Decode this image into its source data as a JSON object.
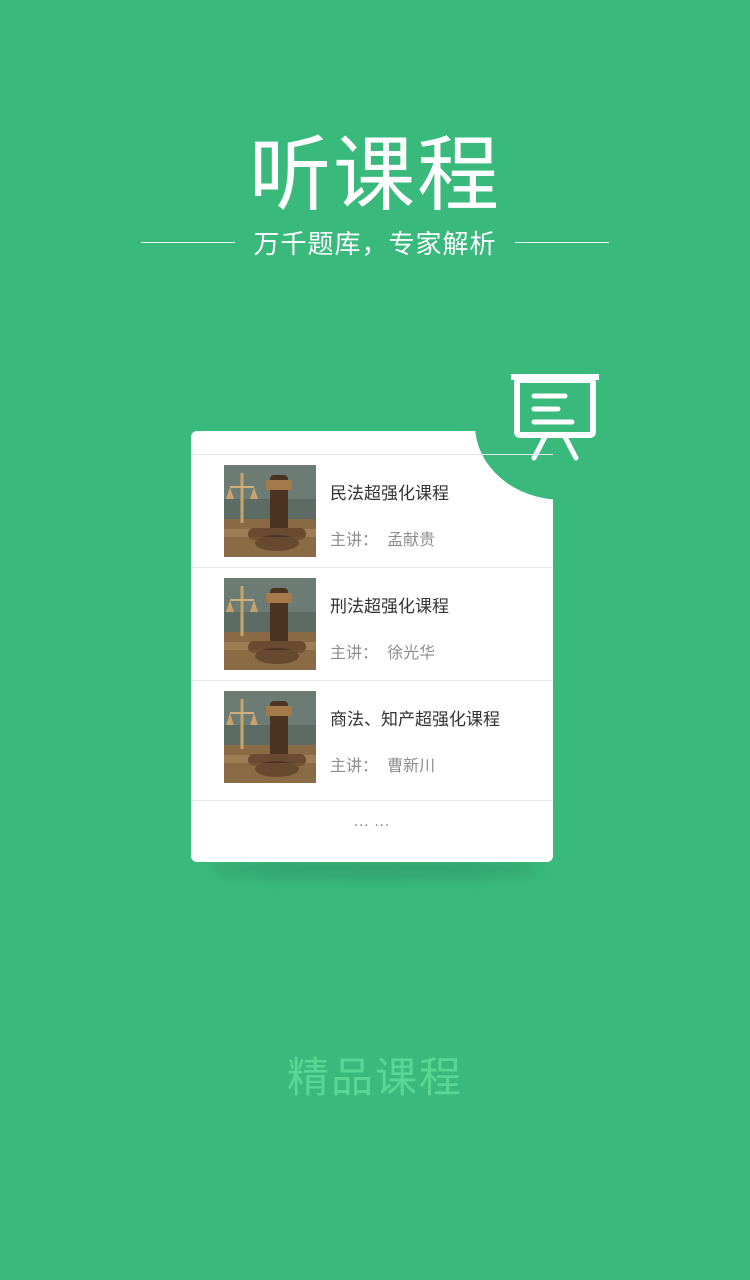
{
  "header": {
    "title": "听课程",
    "subtitle": "万千题库，专家解析"
  },
  "card": {
    "courses": [
      {
        "name": "民法超强化课程",
        "teacher_label": "主讲：",
        "teacher": "孟献贵"
      },
      {
        "name": "刑法超强化课程",
        "teacher_label": "主讲：",
        "teacher": "徐光华"
      },
      {
        "name": "商法、知产超强化课程",
        "teacher_label": "主讲：",
        "teacher": "曹新川"
      }
    ],
    "more": "... ..."
  },
  "footer": {
    "label": "精品课程"
  },
  "colors": {
    "background": "#39b97c",
    "accent_text": "#59d594",
    "card": "#ffffff"
  },
  "icons": {
    "board": "presentation-board-icon",
    "thumbnail": "gavel-scales-thumbnail"
  }
}
